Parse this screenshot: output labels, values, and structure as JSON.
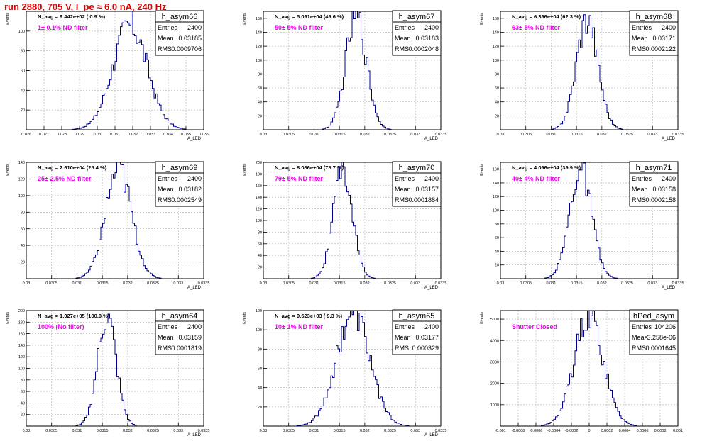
{
  "page_title": "run 2880,   705 V, I_pe ≈ 6.0 nA, 240 Hz",
  "colors": {
    "title": "#e00000",
    "histogram": "#00008b",
    "annotation": "#ee00ee",
    "grid": "#b0b0b0",
    "frame": "#000000"
  },
  "chart_data": [
    {
      "type": "bar",
      "name": "h_asym66",
      "stats": {
        "entries": "2400",
        "mean": "0.03185",
        "rms": "0.0009706"
      },
      "navg": "N_avg = 9.442e+02 ( 0.9 %)",
      "annotation": "1± 0.1% ND filter",
      "ylabel": "Events",
      "xlabel": "A_LED",
      "xlim": [
        0.026,
        0.036
      ],
      "ylim": [
        0,
        120
      ],
      "xticks": [
        "0.026",
        "0.027",
        "0.028",
        "0.029",
        "0.03",
        "0.031",
        "0.032",
        "0.033",
        "0.034",
        "0.035",
        "0.036"
      ],
      "yticks": [
        "20",
        "40",
        "60",
        "80",
        "100"
      ],
      "xtick_values": [
        0.026,
        0.027,
        0.028,
        0.029,
        0.03,
        0.031,
        0.032,
        0.033,
        0.034,
        0.035,
        0.036
      ],
      "ytick_values": [
        20,
        40,
        60,
        80,
        100
      ],
      "mean": 0.03185,
      "rms": 0.0009706,
      "peak": 106
    },
    {
      "type": "bar",
      "name": "h_asym67",
      "stats": {
        "entries": "2400",
        "mean": "0.03183",
        "rms": "0.0002048"
      },
      "navg": "N_avg = 5.091e+04 (49.6 %)",
      "annotation": "50± 5% ND filter",
      "ylabel": "Events",
      "xlabel": "A_LED",
      "xlim": [
        0.03,
        0.0335
      ],
      "ylim": [
        0,
        170
      ],
      "xticks": [
        "0.03",
        "0.0305",
        "0.031",
        "0.0315",
        "0.032",
        "0.0325",
        "0.033",
        "0.0335"
      ],
      "yticks": [
        "20",
        "40",
        "60",
        "80",
        "100",
        "120",
        "140",
        "160"
      ],
      "xtick_values": [
        0.03,
        0.0305,
        0.031,
        0.0315,
        0.032,
        0.0325,
        0.033,
        0.0335
      ],
      "ytick_values": [
        20,
        40,
        60,
        80,
        100,
        120,
        140,
        160
      ],
      "mean": 0.03183,
      "rms": 0.0002048,
      "peak": 163
    },
    {
      "type": "bar",
      "name": "h_asym68",
      "stats": {
        "entries": "2400",
        "mean": "0.03171",
        "rms": "0.0002122"
      },
      "navg": "N_avg = 6.396e+04 (62.3 %)",
      "annotation": "63± 5% ND filter",
      "ylabel": "Events",
      "xlabel": "A_LED",
      "xlim": [
        0.03,
        0.0335
      ],
      "ylim": [
        0,
        170
      ],
      "xticks": [
        "0.03",
        "0.0305",
        "0.031",
        "0.0315",
        "0.032",
        "0.0325",
        "0.033",
        "0.0335"
      ],
      "yticks": [
        "20",
        "40",
        "60",
        "80",
        "100",
        "120",
        "140",
        "160"
      ],
      "xtick_values": [
        0.03,
        0.0305,
        0.031,
        0.0315,
        0.032,
        0.0325,
        0.033,
        0.0335
      ],
      "ytick_values": [
        20,
        40,
        60,
        80,
        100,
        120,
        140,
        160
      ],
      "mean": 0.03171,
      "rms": 0.0002122,
      "peak": 160
    },
    {
      "type": "bar",
      "name": "h_asym69",
      "stats": {
        "entries": "2400",
        "mean": "0.03182",
        "rms": "0.0002549"
      },
      "navg": "N_avg = 2.610e+04 (25.4 %)",
      "annotation": "25± 2.5% ND filter",
      "ylabel": "Events",
      "xlabel": "A_LED",
      "xlim": [
        0.03,
        0.0335
      ],
      "ylim": [
        0,
        140
      ],
      "xticks": [
        "0.03",
        "0.0305",
        "0.031",
        "0.0315",
        "0.032",
        "0.0325",
        "0.033",
        "0.0335"
      ],
      "yticks": [
        "20",
        "40",
        "60",
        "80",
        "100",
        "120",
        "140"
      ],
      "xtick_values": [
        0.03,
        0.0305,
        0.031,
        0.0315,
        0.032,
        0.0325,
        0.033,
        0.0335
      ],
      "ytick_values": [
        20,
        40,
        60,
        80,
        100,
        120,
        140
      ],
      "mean": 0.03182,
      "rms": 0.0002549,
      "peak": 132
    },
    {
      "type": "bar",
      "name": "h_asym70",
      "stats": {
        "entries": "2400",
        "mean": "0.03157",
        "rms": "0.0001884"
      },
      "navg": "N_avg = 8.086e+04 (78.7 %)",
      "annotation": "79± 5% ND filter",
      "ylabel": "Events",
      "xlabel": "A_LED",
      "xlim": [
        0.03,
        0.0335
      ],
      "ylim": [
        0,
        200
      ],
      "xticks": [
        "0.03",
        "0.0305",
        "0.031",
        "0.0315",
        "0.032",
        "0.0325",
        "0.033",
        "0.0335"
      ],
      "yticks": [
        "20",
        "40",
        "60",
        "80",
        "100",
        "120",
        "140",
        "160",
        "180",
        "200"
      ],
      "xtick_values": [
        0.03,
        0.0305,
        0.031,
        0.0315,
        0.032,
        0.0325,
        0.033,
        0.0335
      ],
      "ytick_values": [
        20,
        40,
        60,
        80,
        100,
        120,
        140,
        160,
        180,
        200
      ],
      "mean": 0.03157,
      "rms": 0.0001884,
      "peak": 185
    },
    {
      "type": "bar",
      "name": "h_asym71",
      "stats": {
        "entries": "2400",
        "mean": "0.03158",
        "rms": "0.0002158"
      },
      "navg": "N_avg = 4.096e+04 (39.9 %)",
      "annotation": "40± 4% ND filter",
      "ylabel": "Events",
      "xlabel": "A_LED",
      "xlim": [
        0.03,
        0.0335
      ],
      "ylim": [
        0,
        170
      ],
      "xticks": [
        "0.03",
        "0.0305",
        "0.031",
        "0.0315",
        "0.032",
        "0.0325",
        "0.033",
        "0.0335"
      ],
      "yticks": [
        "20",
        "40",
        "60",
        "80",
        "100",
        "120",
        "140",
        "160"
      ],
      "xtick_values": [
        0.03,
        0.0305,
        0.031,
        0.0315,
        0.032,
        0.0325,
        0.033,
        0.0335
      ],
      "ytick_values": [
        20,
        40,
        60,
        80,
        100,
        120,
        140,
        160
      ],
      "mean": 0.03158,
      "rms": 0.0002158,
      "peak": 160
    },
    {
      "type": "bar",
      "name": "h_asym64",
      "stats": {
        "entries": "2400",
        "mean": "0.03159",
        "rms": "0.0001819"
      },
      "navg": "N_avg = 1.027e+05 (100.0 %)",
      "annotation": "100% (No filter)",
      "ylabel": "Events",
      "xlabel": "A_LED",
      "xlim": [
        0.03,
        0.0335
      ],
      "ylim": [
        0,
        200
      ],
      "xticks": [
        "0.03",
        "0.0305",
        "0.031",
        "0.0315",
        "0.032",
        "0.0325",
        "0.033",
        "0.0335"
      ],
      "yticks": [
        "20",
        "40",
        "60",
        "80",
        "100",
        "120",
        "140",
        "160",
        "180",
        "200"
      ],
      "xtick_values": [
        0.03,
        0.0305,
        0.031,
        0.0315,
        0.032,
        0.0325,
        0.033,
        0.0335
      ],
      "ytick_values": [
        20,
        40,
        60,
        80,
        100,
        120,
        140,
        160,
        180,
        200
      ],
      "mean": 0.03159,
      "rms": 0.0001819,
      "peak": 190
    },
    {
      "type": "bar",
      "name": "h_asym65",
      "stats": {
        "entries": "2400",
        "mean": "0.03177",
        "rms": "0.000329"
      },
      "navg": "N_avg = 9.523e+03 ( 9.3 %)",
      "annotation": "10± 1% ND filter",
      "ylabel": "Events",
      "xlabel": "A_LED",
      "xlim": [
        0.03,
        0.0335
      ],
      "ylim": [
        0,
        120
      ],
      "xticks": [
        "0.03",
        "0.0305",
        "0.031",
        "0.0315",
        "0.032",
        "0.0325",
        "0.033",
        "0.0335"
      ],
      "yticks": [
        "20",
        "40",
        "60",
        "80",
        "100",
        "120"
      ],
      "xtick_values": [
        0.03,
        0.0305,
        0.031,
        0.0315,
        0.032,
        0.0325,
        0.033,
        0.0335
      ],
      "ytick_values": [
        20,
        40,
        60,
        80,
        100,
        120
      ],
      "mean": 0.03177,
      "rms": 0.000329,
      "peak": 118
    },
    {
      "type": "bar",
      "name": "hPed_asym",
      "stats": {
        "entries": "104206",
        "mean": "-3.258e-06",
        "rms": "0.0001645"
      },
      "navg": "",
      "annotation": "Shutter Closed",
      "ylabel": "Events",
      "xlabel": "",
      "xlim": [
        -0.001,
        0.001
      ],
      "ylim": [
        0,
        5400
      ],
      "xticks": [
        "-0.001",
        "-0.0008",
        "-0.0006",
        "-0.0004",
        "-0.0002",
        "0",
        "0.0002",
        "0.0004",
        "0.0006",
        "0.0008",
        "0.001"
      ],
      "yticks": [
        "1000",
        "2000",
        "3000",
        "4000",
        "5000"
      ],
      "xtick_values": [
        -0.001,
        -0.0008,
        -0.0006,
        -0.0004,
        -0.0002,
        0,
        0.0002,
        0.0004,
        0.0006,
        0.0008,
        0.001
      ],
      "ytick_values": [
        1000,
        2000,
        3000,
        4000,
        5000
      ],
      "mean": -3.258e-06,
      "rms": 0.0001645,
      "peak": 5100
    }
  ]
}
